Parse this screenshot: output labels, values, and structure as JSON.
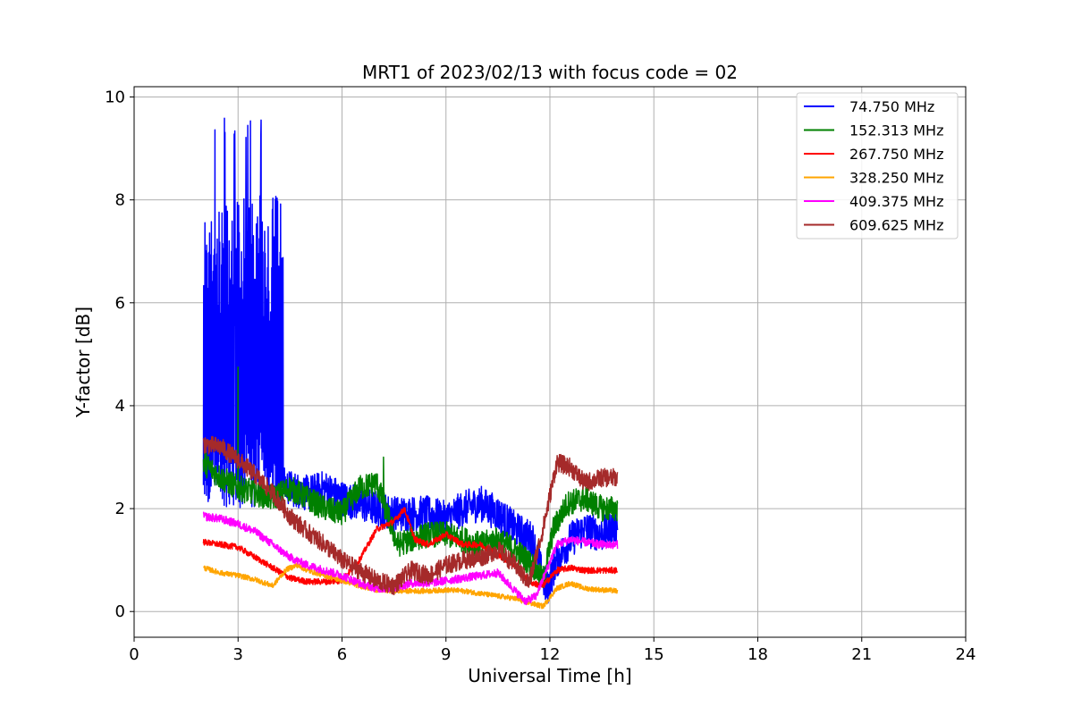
{
  "chart_data": {
    "type": "line",
    "title": "MRT1 of 2023/02/13 with focus code = 02",
    "xlabel": "Universal Time [h]",
    "ylabel": "Y-factor [dB]",
    "xlim": [
      0,
      24
    ],
    "ylim": [
      -0.5,
      10.2
    ],
    "xticks": [
      "0",
      "3",
      "6",
      "9",
      "12",
      "15",
      "18",
      "21",
      "24"
    ],
    "yticks": [
      "0",
      "2",
      "4",
      "6",
      "8",
      "10"
    ],
    "grid": true,
    "legend_position": "top-right",
    "series": [
      {
        "name": " 74.750 MHz",
        "color": "#0000ff",
        "noise": 0.35,
        "points": [
          [
            2.0,
            2.2
          ],
          [
            2.3,
            2.1
          ],
          [
            3.0,
            2.6
          ],
          [
            3.5,
            2.4
          ],
          [
            4.2,
            2.5
          ],
          [
            4.5,
            2.4
          ],
          [
            5.0,
            2.3
          ],
          [
            5.5,
            2.4
          ],
          [
            6.0,
            2.2
          ],
          [
            6.5,
            2.1
          ],
          [
            7.0,
            2.0
          ],
          [
            7.5,
            1.9
          ],
          [
            8.0,
            1.9
          ],
          [
            8.5,
            1.9
          ],
          [
            9.0,
            1.8
          ],
          [
            9.5,
            2.0
          ],
          [
            10.0,
            2.1
          ],
          [
            10.5,
            1.9
          ],
          [
            11.0,
            1.6
          ],
          [
            11.5,
            1.4
          ],
          [
            11.9,
            0.4
          ],
          [
            12.2,
            1.0
          ],
          [
            12.6,
            1.4
          ],
          [
            13.0,
            1.6
          ],
          [
            13.5,
            1.5
          ],
          [
            13.95,
            1.7
          ]
        ],
        "burst": {
          "x": [
            2.0,
            4.3
          ],
          "low": 2.0,
          "high": 9.6
        }
      },
      {
        "name": "152.313 MHz",
        "color": "#008000",
        "noise": 0.25,
        "points": [
          [
            2.0,
            2.9
          ],
          [
            2.5,
            2.6
          ],
          [
            3.0,
            2.4
          ],
          [
            3.5,
            2.3
          ],
          [
            4.0,
            2.2
          ],
          [
            4.5,
            2.4
          ],
          [
            5.0,
            2.2
          ],
          [
            5.5,
            2.0
          ],
          [
            6.0,
            1.9
          ],
          [
            6.5,
            2.4
          ],
          [
            7.0,
            2.5
          ],
          [
            7.3,
            1.9
          ],
          [
            7.6,
            1.3
          ],
          [
            8.0,
            1.4
          ],
          [
            8.5,
            1.5
          ],
          [
            9.0,
            1.5
          ],
          [
            9.5,
            1.4
          ],
          [
            10.0,
            1.3
          ],
          [
            10.5,
            1.4
          ],
          [
            11.0,
            1.2
          ],
          [
            11.5,
            0.9
          ],
          [
            11.8,
            0.6
          ],
          [
            12.1,
            1.6
          ],
          [
            12.5,
            2.1
          ],
          [
            13.0,
            2.2
          ],
          [
            13.5,
            2.0
          ],
          [
            13.95,
            2.0
          ]
        ],
        "spikes": [
          [
            3.0,
            4.75
          ],
          [
            7.2,
            3.0
          ]
        ]
      },
      {
        "name": "267.750 MHz",
        "color": "#ff0000",
        "noise": 0.06,
        "points": [
          [
            2.0,
            1.35
          ],
          [
            2.5,
            1.3
          ],
          [
            3.0,
            1.25
          ],
          [
            3.5,
            1.05
          ],
          [
            4.0,
            0.85
          ],
          [
            4.5,
            0.65
          ],
          [
            5.0,
            0.58
          ],
          [
            5.5,
            0.58
          ],
          [
            6.0,
            0.6
          ],
          [
            6.5,
            1.0
          ],
          [
            7.0,
            1.6
          ],
          [
            7.5,
            1.75
          ],
          [
            7.8,
            2.0
          ],
          [
            8.1,
            1.4
          ],
          [
            8.5,
            1.3
          ],
          [
            9.0,
            1.5
          ],
          [
            9.5,
            1.3
          ],
          [
            10.0,
            1.3
          ],
          [
            10.5,
            1.1
          ],
          [
            11.0,
            0.9
          ],
          [
            11.5,
            0.55
          ],
          [
            11.8,
            0.5
          ],
          [
            12.2,
            0.8
          ],
          [
            12.6,
            0.85
          ],
          [
            13.0,
            0.8
          ],
          [
            13.5,
            0.8
          ],
          [
            13.95,
            0.8
          ]
        ]
      },
      {
        "name": "328.250 MHz",
        "color": "#ffa500",
        "noise": 0.05,
        "points": [
          [
            2.0,
            0.85
          ],
          [
            2.5,
            0.75
          ],
          [
            3.0,
            0.7
          ],
          [
            3.5,
            0.62
          ],
          [
            4.0,
            0.5
          ],
          [
            4.4,
            0.82
          ],
          [
            4.7,
            0.9
          ],
          [
            5.0,
            0.8
          ],
          [
            5.5,
            0.7
          ],
          [
            6.0,
            0.6
          ],
          [
            6.5,
            0.5
          ],
          [
            7.0,
            0.42
          ],
          [
            7.5,
            0.4
          ],
          [
            8.0,
            0.4
          ],
          [
            8.5,
            0.4
          ],
          [
            9.0,
            0.42
          ],
          [
            9.5,
            0.4
          ],
          [
            10.0,
            0.35
          ],
          [
            10.5,
            0.3
          ],
          [
            11.0,
            0.25
          ],
          [
            11.5,
            0.15
          ],
          [
            11.8,
            0.1
          ],
          [
            12.2,
            0.45
          ],
          [
            12.6,
            0.55
          ],
          [
            13.0,
            0.45
          ],
          [
            13.5,
            0.42
          ],
          [
            13.95,
            0.4
          ]
        ]
      },
      {
        "name": "409.375 MHz",
        "color": "#ff00ff",
        "noise": 0.08,
        "points": [
          [
            2.0,
            1.85
          ],
          [
            2.5,
            1.8
          ],
          [
            3.0,
            1.7
          ],
          [
            3.5,
            1.55
          ],
          [
            4.0,
            1.3
          ],
          [
            4.5,
            1.05
          ],
          [
            5.0,
            0.9
          ],
          [
            5.5,
            0.8
          ],
          [
            6.0,
            0.7
          ],
          [
            6.5,
            0.55
          ],
          [
            7.0,
            0.45
          ],
          [
            7.5,
            0.45
          ],
          [
            8.0,
            0.55
          ],
          [
            8.5,
            0.55
          ],
          [
            9.0,
            0.6
          ],
          [
            9.5,
            0.65
          ],
          [
            10.0,
            0.7
          ],
          [
            10.5,
            0.75
          ],
          [
            11.0,
            0.4
          ],
          [
            11.3,
            0.2
          ],
          [
            11.6,
            0.3
          ],
          [
            11.9,
            0.8
          ],
          [
            12.2,
            1.3
          ],
          [
            12.6,
            1.4
          ],
          [
            13.0,
            1.35
          ],
          [
            13.5,
            1.3
          ],
          [
            13.95,
            1.3
          ]
        ]
      },
      {
        "name": "609.625 MHz",
        "color": "#a52a2a",
        "noise": 0.18,
        "points": [
          [
            2.0,
            3.25
          ],
          [
            2.5,
            3.2
          ],
          [
            3.0,
            2.95
          ],
          [
            3.5,
            2.65
          ],
          [
            4.0,
            2.3
          ],
          [
            4.5,
            1.85
          ],
          [
            5.0,
            1.55
          ],
          [
            5.5,
            1.3
          ],
          [
            6.0,
            1.0
          ],
          [
            6.5,
            0.8
          ],
          [
            7.0,
            0.6
          ],
          [
            7.5,
            0.5
          ],
          [
            8.0,
            0.8
          ],
          [
            8.5,
            0.7
          ],
          [
            9.0,
            0.9
          ],
          [
            9.5,
            1.0
          ],
          [
            10.0,
            1.05
          ],
          [
            10.5,
            1.2
          ],
          [
            11.0,
            0.9
          ],
          [
            11.4,
            0.55
          ],
          [
            11.8,
            1.6
          ],
          [
            12.2,
            2.9
          ],
          [
            12.6,
            2.8
          ],
          [
            13.0,
            2.5
          ],
          [
            13.5,
            2.6
          ],
          [
            13.95,
            2.6
          ]
        ]
      }
    ]
  }
}
